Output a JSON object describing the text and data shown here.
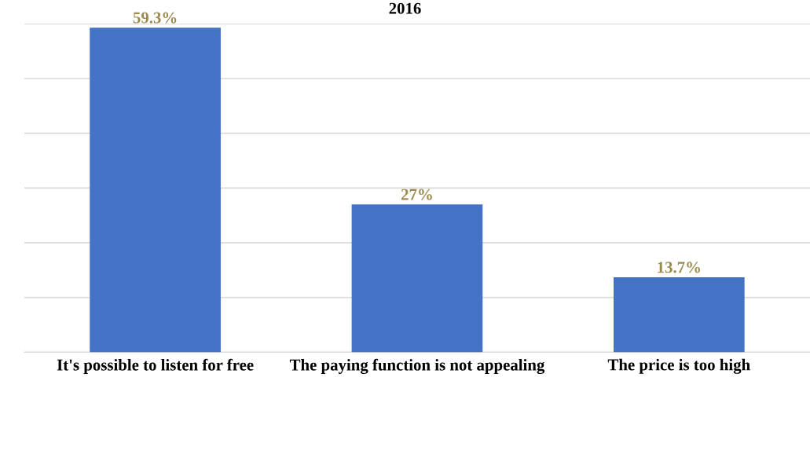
{
  "chart_data": {
    "type": "bar",
    "title": "2016",
    "categories": [
      "It's possible to listen for free",
      "The paying function is not appealing",
      "The price is too high"
    ],
    "values": [
      59.3,
      27,
      13.7
    ],
    "value_labels": [
      "59.3%",
      "27%",
      "13.7%"
    ],
    "color": "#4472c4",
    "ylim": [
      0,
      60
    ],
    "yticks": [
      {
        "value": 0,
        "label": null
      },
      {
        "value": 10,
        "label": null
      },
      {
        "value": 20,
        "label": null
      },
      {
        "value": 30,
        "label": null
      },
      {
        "value": 40,
        "label": null
      },
      {
        "value": 50,
        "label": null
      },
      {
        "value": 60,
        "label": null
      }
    ],
    "tick_labels": "x",
    "grid": "y"
  }
}
